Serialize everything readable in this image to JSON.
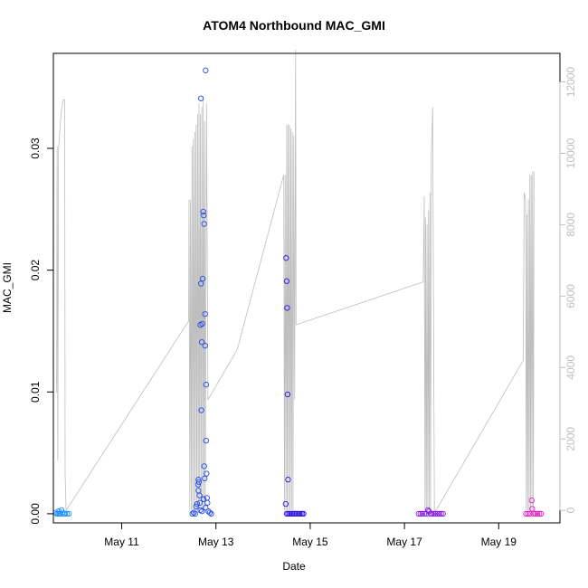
{
  "chart_data": {
    "type": "scatter",
    "title": "ATOM4 Northbound MAC_GMI",
    "xlabel": "Date",
    "ylabel": "MAC_GMI",
    "x_ticks": [
      "May 11",
      "May 13",
      "May 15",
      "May 17",
      "May 19"
    ],
    "x_tick_values": [
      11,
      13,
      15,
      17,
      19
    ],
    "y_ticks": [
      "0.00",
      "0.01",
      "0.02",
      "0.03"
    ],
    "y_tick_values": [
      0,
      0.01,
      0.02,
      0.03
    ],
    "y2_ticks": [
      "0",
      "2000",
      "4000",
      "6000",
      "8000",
      "10000",
      "12000"
    ],
    "y2_tick_values": [
      0,
      2000,
      4000,
      6000,
      8000,
      10000,
      12000
    ],
    "xlim": [
      9.55,
      20.3
    ],
    "ylim": [
      -0.00075,
      0.0378
    ],
    "y2lim": [
      -350,
      12800
    ],
    "grid": false,
    "colors": {
      "line": "#bebebe",
      "axis": "#000000",
      "secondary_axis": "#bebebe"
    },
    "series": [
      {
        "color": "#1e90ff",
        "points": [
          [
            9.62,
            0
          ],
          [
            9.65,
            0
          ],
          [
            9.68,
            0
          ],
          [
            9.7,
            0
          ],
          [
            9.72,
            0.0003
          ],
          [
            9.74,
            0.0001
          ],
          [
            9.77,
            0
          ],
          [
            9.8,
            0
          ],
          [
            9.84,
            0
          ],
          [
            9.88,
            0
          ],
          [
            9.6,
            0.0001
          ],
          [
            9.66,
            0.0002
          ]
        ]
      },
      {
        "color": "#2249e8",
        "points": [
          [
            12.5,
            0
          ],
          [
            12.53,
            0.0001
          ],
          [
            12.56,
            0
          ],
          [
            12.58,
            0.0006
          ],
          [
            12.6,
            0.0008
          ],
          [
            12.62,
            0.0024
          ],
          [
            12.63,
            0.0019
          ],
          [
            12.63,
            0.0028
          ],
          [
            12.64,
            0.0026
          ],
          [
            12.65,
            0.0015
          ],
          [
            12.66,
            0.0009
          ],
          [
            12.67,
            0.0003
          ],
          [
            12.67,
            0.0155
          ],
          [
            12.68,
            0.0189
          ],
          [
            12.68,
            0.0341
          ],
          [
            12.69,
            0.0085
          ],
          [
            12.7,
            0.0141
          ],
          [
            12.71,
            0.0156
          ],
          [
            12.72,
            0.0193
          ],
          [
            12.73,
            0.0248
          ],
          [
            12.74,
            0.0245
          ],
          [
            12.75,
            0.0238
          ],
          [
            12.75,
            0.0039
          ],
          [
            12.76,
            0.0029
          ],
          [
            12.77,
            0.0164
          ],
          [
            12.77,
            0.0138
          ],
          [
            12.78,
            0.0364
          ],
          [
            12.79,
            0.0106
          ],
          [
            12.79,
            0.006
          ],
          [
            12.8,
            0.0033
          ],
          [
            12.81,
            0.0013
          ],
          [
            12.82,
            0.0009
          ],
          [
            12.84,
            0.0002
          ],
          [
            12.87,
            0.0001
          ],
          [
            12.9,
            0
          ],
          [
            12.7,
            0.0002
          ],
          [
            12.74,
            0.0012
          ],
          [
            12.78,
            0.0005
          ]
        ]
      },
      {
        "color": "#2a14e6",
        "points": [
          [
            14.48,
            0.0008
          ],
          [
            14.49,
            0.021
          ],
          [
            14.5,
            0.0191
          ],
          [
            14.51,
            0.0169
          ],
          [
            14.52,
            0.0098
          ],
          [
            14.53,
            0.0028
          ],
          [
            14.5,
            0
          ],
          [
            14.53,
            0
          ],
          [
            14.56,
            0
          ],
          [
            14.59,
            0
          ],
          [
            14.62,
            0
          ],
          [
            14.65,
            0
          ],
          [
            14.68,
            0
          ],
          [
            14.71,
            0
          ],
          [
            14.74,
            0
          ],
          [
            14.77,
            0
          ],
          [
            14.8,
            0
          ],
          [
            14.83,
            0
          ],
          [
            14.86,
            0
          ]
        ]
      },
      {
        "color": "#8a1ae6",
        "points": [
          [
            17.3,
            0
          ],
          [
            17.34,
            0
          ],
          [
            17.38,
            0
          ],
          [
            17.42,
            0
          ],
          [
            17.46,
            0
          ],
          [
            17.5,
            0.0003
          ],
          [
            17.52,
            0.0002
          ],
          [
            17.55,
            0
          ],
          [
            17.58,
            0
          ],
          [
            17.62,
            0
          ],
          [
            17.66,
            0
          ],
          [
            17.7,
            0
          ],
          [
            17.74,
            0
          ],
          [
            17.78,
            0
          ],
          [
            17.82,
            0
          ]
        ]
      },
      {
        "color": "#e619c8",
        "points": [
          [
            19.58,
            0
          ],
          [
            19.62,
            0
          ],
          [
            19.66,
            0
          ],
          [
            19.7,
            0.0011
          ],
          [
            19.71,
            0.0004
          ],
          [
            19.74,
            0
          ],
          [
            19.78,
            0
          ],
          [
            19.82,
            0
          ],
          [
            19.86,
            0
          ],
          [
            19.9,
            0
          ]
        ]
      }
    ],
    "line_series": {
      "axis": "secondary",
      "points": [
        [
          9.62,
          3300
        ],
        [
          9.63,
          10200
        ],
        [
          9.645,
          1400
        ],
        [
          9.66,
          10100
        ],
        [
          9.69,
          10700
        ],
        [
          9.72,
          11200
        ],
        [
          9.76,
          11500
        ],
        [
          9.79,
          11500
        ],
        [
          9.8,
          1000
        ],
        [
          9.82,
          0
        ],
        [
          12.42,
          5300
        ],
        [
          12.43,
          8700
        ],
        [
          12.445,
          0
        ],
        [
          12.46,
          8700
        ],
        [
          12.475,
          0
        ],
        [
          12.49,
          10200
        ],
        [
          12.505,
          0
        ],
        [
          12.52,
          10400
        ],
        [
          12.535,
          0
        ],
        [
          12.55,
          10600
        ],
        [
          12.565,
          0
        ],
        [
          12.58,
          10800
        ],
        [
          12.595,
          0
        ],
        [
          12.61,
          11100
        ],
        [
          12.625,
          0
        ],
        [
          12.64,
          11400
        ],
        [
          12.655,
          0
        ],
        [
          12.67,
          11100
        ],
        [
          12.685,
          0
        ],
        [
          12.7,
          11300
        ],
        [
          12.715,
          0
        ],
        [
          12.73,
          11600
        ],
        [
          12.745,
          0
        ],
        [
          12.76,
          10900
        ],
        [
          12.775,
          0
        ],
        [
          12.8,
          11400
        ],
        [
          12.83,
          3100
        ],
        [
          13.45,
          4500
        ],
        [
          14.44,
          9400
        ],
        [
          14.455,
          0
        ],
        [
          14.47,
          9400
        ],
        [
          14.485,
          0
        ],
        [
          14.5,
          10800
        ],
        [
          14.515,
          0
        ],
        [
          14.53,
          10800
        ],
        [
          14.545,
          0
        ],
        [
          14.56,
          10800
        ],
        [
          14.575,
          0
        ],
        [
          14.59,
          10700
        ],
        [
          14.605,
          0
        ],
        [
          14.62,
          10600
        ],
        [
          14.635,
          0
        ],
        [
          14.65,
          10500
        ],
        [
          14.67,
          3100
        ],
        [
          14.69,
          12900
        ],
        [
          14.7,
          5200
        ],
        [
          17.4,
          6400
        ],
        [
          17.42,
          8800
        ],
        [
          17.435,
          0
        ],
        [
          17.45,
          8200
        ],
        [
          17.465,
          0
        ],
        [
          17.48,
          8000
        ],
        [
          17.495,
          0
        ],
        [
          17.51,
          8400
        ],
        [
          17.525,
          0
        ],
        [
          17.54,
          8900
        ],
        [
          17.555,
          0
        ],
        [
          17.57,
          10000
        ],
        [
          17.6,
          11300
        ],
        [
          17.635,
          0
        ],
        [
          17.67,
          0
        ],
        [
          19.52,
          4200
        ],
        [
          19.54,
          8900
        ],
        [
          19.555,
          8800
        ],
        [
          19.57,
          8700
        ],
        [
          19.585,
          0
        ],
        [
          19.6,
          8300
        ],
        [
          19.615,
          0
        ],
        [
          19.63,
          8700
        ],
        [
          19.645,
          0
        ],
        [
          19.66,
          9400
        ],
        [
          19.675,
          0
        ],
        [
          19.69,
          9400
        ],
        [
          19.705,
          0
        ],
        [
          19.72,
          9500
        ],
        [
          19.735,
          0
        ],
        [
          19.75,
          9500
        ]
      ]
    }
  }
}
